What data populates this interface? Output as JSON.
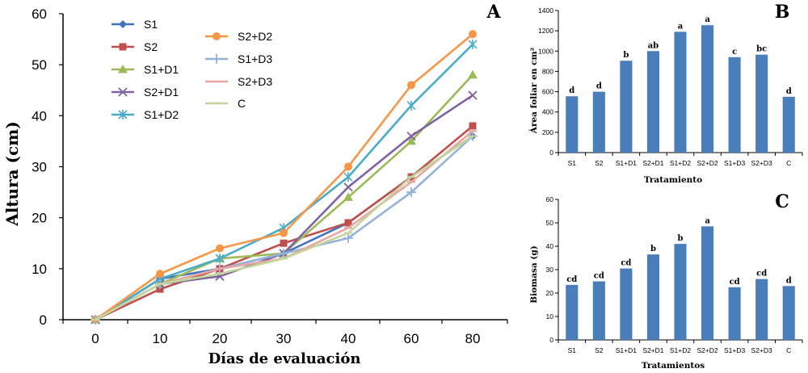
{
  "chart_data": [
    {
      "panel_letter": "A",
      "type": "line",
      "x": [
        0,
        10,
        20,
        30,
        40,
        60,
        80
      ],
      "xlabel": "Días de evaluación",
      "ylabel": "Altura (cm)",
      "ylim": [
        0,
        60
      ],
      "yticks": [
        0,
        10,
        20,
        30,
        40,
        50,
        60
      ],
      "grid": false,
      "legend": "top-left",
      "series": [
        {
          "name": "S1",
          "color": "#4472c4",
          "marker": "diamond",
          "values": [
            0,
            8,
            10,
            13,
            19,
            28,
            36
          ]
        },
        {
          "name": "S2",
          "color": "#c0504d",
          "marker": "square",
          "values": [
            0,
            6,
            10,
            15,
            19,
            28,
            38
          ]
        },
        {
          "name": "S1+D1",
          "color": "#9bbb59",
          "marker": "triangle",
          "values": [
            0,
            7,
            12,
            13,
            24,
            35,
            48
          ]
        },
        {
          "name": "S2+D1",
          "color": "#8064a2",
          "marker": "x",
          "values": [
            0,
            7,
            8.5,
            13,
            26,
            36,
            44
          ]
        },
        {
          "name": "S1+D2",
          "color": "#4bacc6",
          "marker": "star",
          "values": [
            0,
            8,
            12,
            18,
            28,
            42,
            54
          ]
        },
        {
          "name": "S2+D2",
          "color": "#f79646",
          "marker": "circle",
          "values": [
            0,
            9,
            14,
            17,
            30,
            46,
            56
          ]
        },
        {
          "name": "S1+D3",
          "color": "#95b3d7",
          "marker": "plus",
          "values": [
            0,
            7,
            10,
            13,
            16,
            25,
            36
          ]
        },
        {
          "name": "S2+D3",
          "color": "#e6a6a4",
          "marker": "dash",
          "values": [
            0,
            7,
            10,
            12,
            18,
            27,
            37
          ]
        },
        {
          "name": "C",
          "color": "#c3d69b",
          "marker": "dash",
          "values": [
            0,
            7,
            9,
            12,
            17,
            28,
            36
          ]
        }
      ]
    },
    {
      "panel_letter": "B",
      "type": "bar",
      "categories": [
        "S1",
        "S2",
        "S1+D1",
        "S2+D1",
        "S1+D2",
        "S2+D2",
        "S1+D3",
        "S2+D3",
        "C"
      ],
      "values": [
        555,
        600,
        905,
        1000,
        1190,
        1255,
        940,
        965,
        550
      ],
      "labels": [
        "d",
        "d",
        "b",
        "ab",
        "a",
        "a",
        "c",
        "bc",
        "d"
      ],
      "xlabel": "Tratamiento",
      "ylabel": "Área foliar en cm²",
      "ylim": [
        0,
        1400
      ],
      "yticks": [
        0,
        200,
        400,
        600,
        800,
        1000,
        1200,
        1400
      ],
      "color": "#4a7ebb",
      "grid": false
    },
    {
      "panel_letter": "C",
      "type": "bar",
      "categories": [
        "S1",
        "S2",
        "S1+D1",
        "S2+D1",
        "S1+D2",
        "S2+D2",
        "S1+D3",
        "S2+D3",
        "C"
      ],
      "values": [
        23.5,
        25,
        30.5,
        36.5,
        41,
        48.5,
        22.5,
        26,
        23
      ],
      "labels": [
        "cd",
        "cd",
        "cd",
        "b",
        "b",
        "a",
        "cd",
        "cd",
        "d"
      ],
      "xlabel": "Tratamientos",
      "ylabel": "Biomasa (g)",
      "ylim": [
        0,
        60
      ],
      "yticks": [
        0,
        10,
        20,
        30,
        40,
        50,
        60
      ],
      "color": "#4a7ebb",
      "grid": false
    }
  ]
}
